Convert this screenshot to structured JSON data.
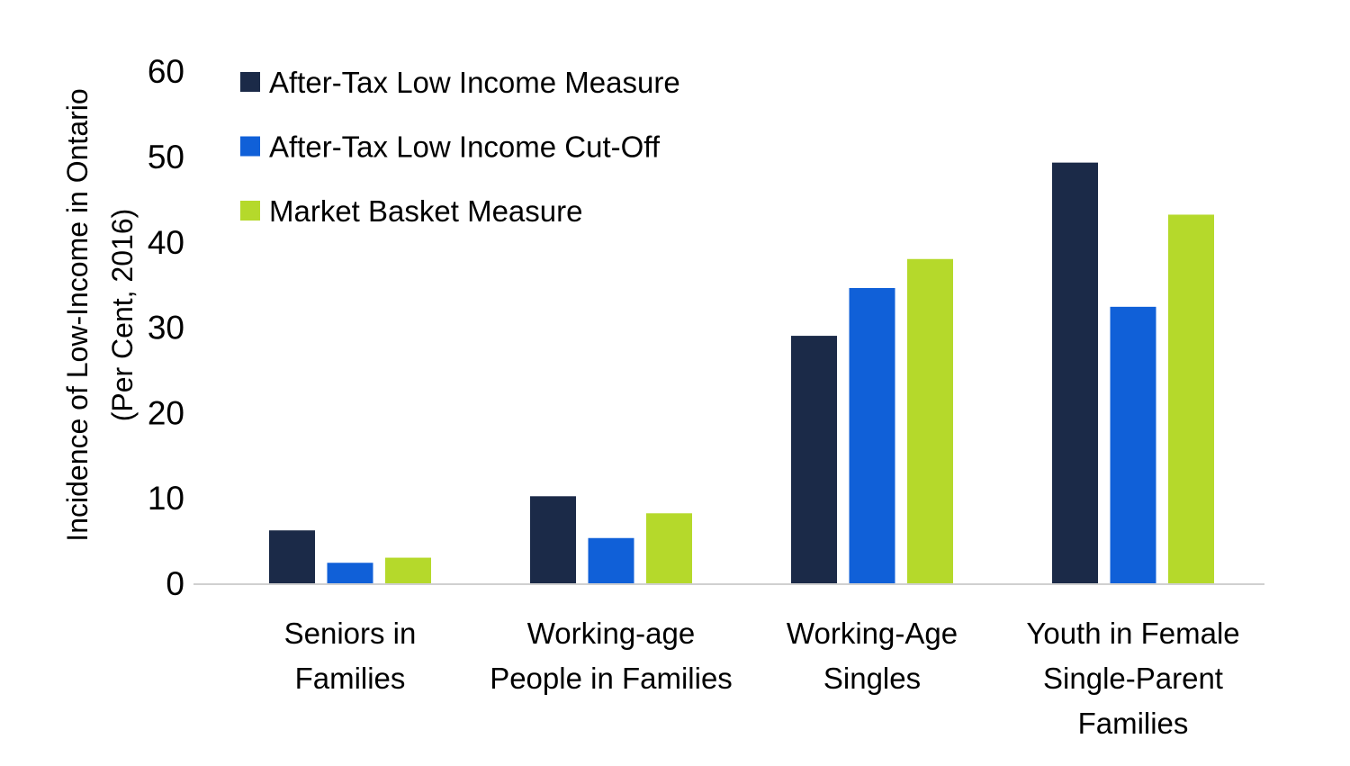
{
  "chart_data": {
    "type": "bar",
    "title": "",
    "xlabel": "",
    "ylabel": [
      "Incidence of Low-Income in Ontario",
      "(Per Cent, 2016)"
    ],
    "ylim": [
      0,
      60
    ],
    "yticks": [
      0,
      10,
      20,
      30,
      40,
      50,
      60
    ],
    "grid": false,
    "legend_position": "top-left",
    "categories": [
      [
        "Seniors in",
        "Families"
      ],
      [
        "Working-age",
        "People in Families"
      ],
      [
        "Working-Age",
        "Singles"
      ],
      [
        "Youth in Female",
        "Single-Parent",
        "Families"
      ]
    ],
    "series": [
      {
        "name": "After-Tax Low Income Measure",
        "color": "#1b2a48",
        "values": [
          6.2,
          10.2,
          29.0,
          49.3
        ]
      },
      {
        "name": "After-Tax Low Income Cut-Off",
        "color": "#1060d8",
        "values": [
          2.4,
          5.3,
          34.6,
          32.4
        ]
      },
      {
        "name": "Market Basket Measure",
        "color": "#b5d92b",
        "values": [
          3.0,
          8.2,
          38.0,
          43.2
        ]
      }
    ]
  }
}
